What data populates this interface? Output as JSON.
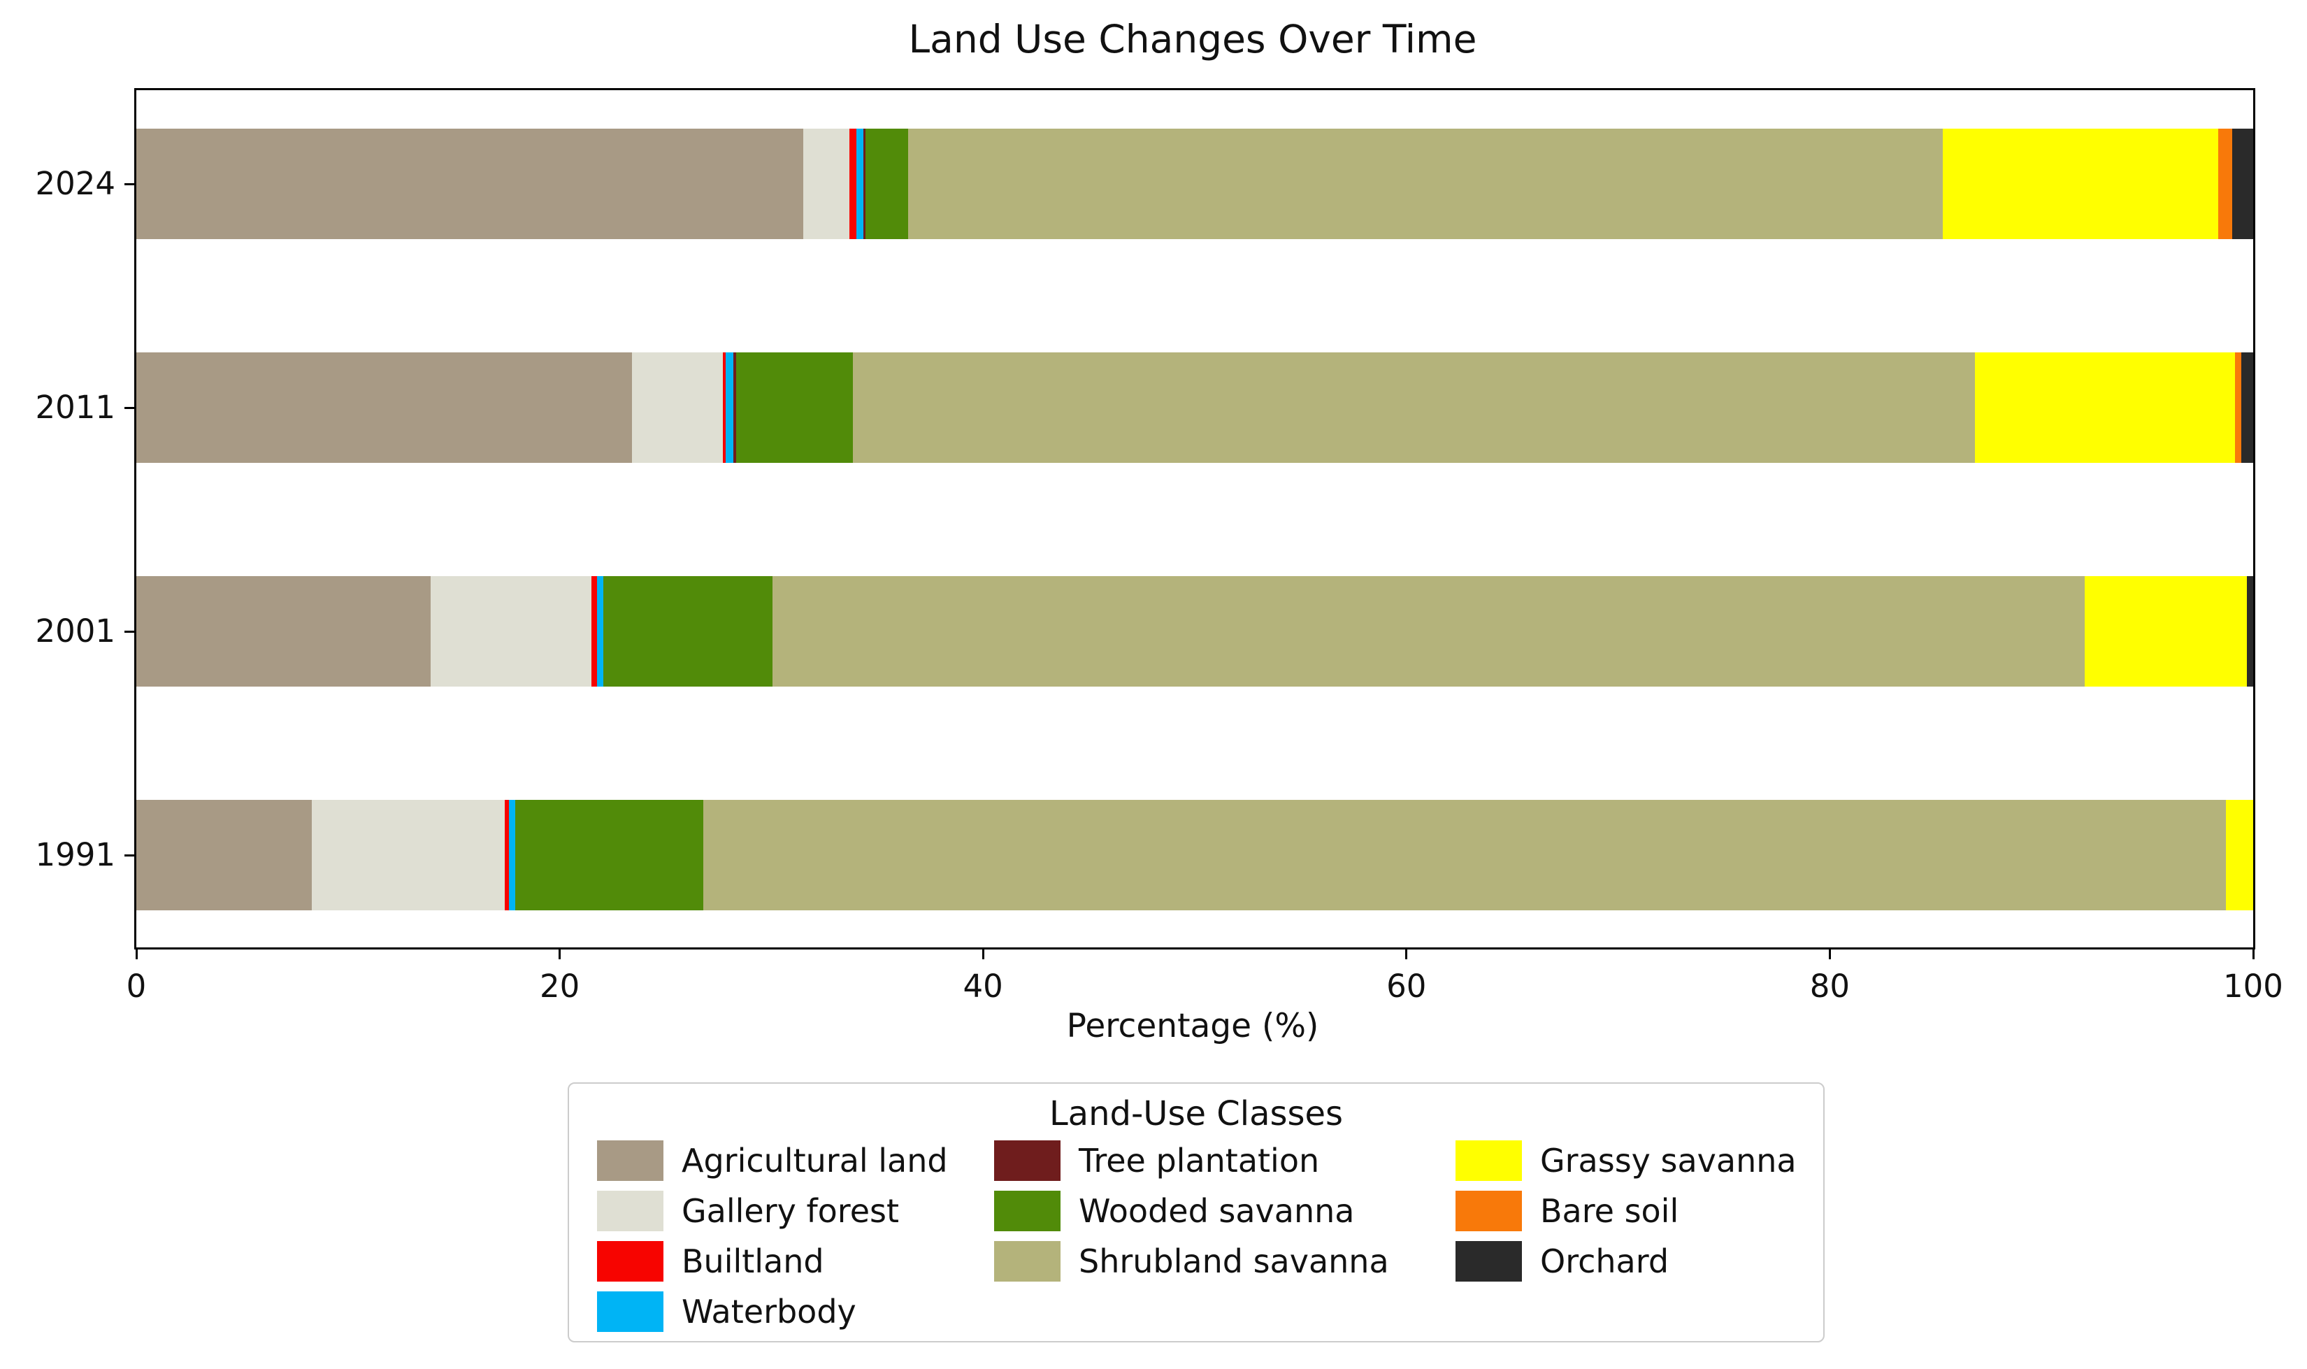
{
  "title": "Land Use Changes Over Time",
  "legend": {
    "title": "Land-Use Classes",
    "columns": [
      [
        "Agricultural land",
        "Gallery forest",
        "Builtland",
        "Waterbody"
      ],
      [
        "Tree plantation",
        "Wooded savanna",
        "Shrubland savanna"
      ],
      [
        "Grassy savanna",
        "Bare soil",
        "Orchard"
      ]
    ]
  },
  "chart_data": {
    "type": "bar",
    "orientation": "horizontal",
    "stacked": true,
    "title": "Land Use Changes Over Time",
    "xlabel": "Percentage (%)",
    "xlim": [
      0,
      100
    ],
    "x_ticks": [
      "0",
      "20",
      "40",
      "60",
      "80",
      "100"
    ],
    "grid": false,
    "legend_title": "Land-Use Classes",
    "legend_position": "below-center",
    "categories": [
      "2024",
      "2011",
      "2001",
      "1991"
    ],
    "series": [
      {
        "name": "Agricultural land",
        "color": "#a89a85",
        "values": [
          31.5,
          23.4,
          13.9,
          8.3
        ]
      },
      {
        "name": "Gallery forest",
        "color": "#dfdfd3",
        "values": [
          2.2,
          4.3,
          7.6,
          9.1
        ]
      },
      {
        "name": "Builtland",
        "color": "#f70400",
        "values": [
          0.3,
          0.15,
          0.25,
          0.2
        ]
      },
      {
        "name": "Waterbody",
        "color": "#00b4f5",
        "values": [
          0.35,
          0.35,
          0.3,
          0.3
        ]
      },
      {
        "name": "Tree plantation",
        "color": "#6f1d1d",
        "values": [
          0.1,
          0.15,
          0.0,
          0.0
        ]
      },
      {
        "name": "Wooded savanna",
        "color": "#518b09",
        "values": [
          2.0,
          5.5,
          8.0,
          8.9
        ]
      },
      {
        "name": "Shrubland savanna",
        "color": "#b4b37b",
        "values": [
          48.9,
          53.0,
          62.0,
          71.9
        ]
      },
      {
        "name": "Grassy savanna",
        "color": "#ffff00",
        "values": [
          13.0,
          12.3,
          7.65,
          1.3
        ]
      },
      {
        "name": "Bare soil",
        "color": "#f8790a",
        "values": [
          0.65,
          0.3,
          0.0,
          0.0
        ]
      },
      {
        "name": "Orchard",
        "color": "#2a2a2a",
        "values": [
          1.0,
          0.55,
          0.3,
          0.0
        ]
      }
    ]
  }
}
